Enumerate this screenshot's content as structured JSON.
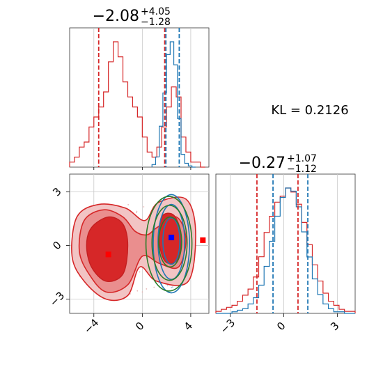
{
  "chart_data": [
    {
      "type": "histogram",
      "panel": "param1-marginal",
      "title": {
        "main": "−2.08",
        "upper": "+4.05",
        "lower": "−1.28"
      },
      "xlim": [
        -6,
        5.5
      ],
      "series": [
        {
          "name": "",
          "color": "#d62728",
          "bins": [
            -6.0,
            -5.6,
            -5.2,
            -4.8,
            -4.4,
            -4.0,
            -3.6,
            -3.2,
            -2.8,
            -2.4,
            -2.0,
            -1.6,
            -1.2,
            -0.8,
            -0.4,
            0.0,
            0.4,
            0.8,
            1.2,
            1.6,
            2.0,
            2.4,
            2.8,
            3.2,
            3.6,
            4.0,
            4.4,
            4.8,
            5.2
          ],
          "counts": [
            1,
            2,
            4,
            5,
            8,
            10,
            12,
            15,
            21,
            25,
            22,
            17,
            14,
            12,
            10,
            6,
            3,
            2,
            4,
            8,
            12,
            16,
            14,
            6,
            3,
            1,
            1,
            0
          ]
        },
        {
          "name": "",
          "color": "#1f77b4",
          "bins": [
            0.8,
            1.1,
            1.4,
            1.7,
            2.0,
            2.3,
            2.6,
            2.9,
            3.2,
            3.5,
            3.8,
            4.1,
            4.4
          ],
          "counts": [
            2,
            8,
            32,
            58,
            88,
            98,
            80,
            38,
            10,
            3,
            1,
            0
          ]
        }
      ],
      "vlines": [
        {
          "x": -3.6,
          "color": "#d62728"
        },
        {
          "x": 1.85,
          "color": "#d62728"
        },
        {
          "x": 1.95,
          "color": "#1f77b4"
        },
        {
          "x": 3.05,
          "color": "#1f77b4"
        }
      ]
    },
    {
      "type": "contour",
      "panel": "joint",
      "xlim": [
        -6,
        5.5
      ],
      "ylim": [
        -3.8,
        4.0
      ],
      "xticks": [
        "−4",
        "0",
        "4"
      ],
      "yticks": [
        "3",
        "0",
        "−3"
      ],
      "markers": [
        {
          "x": -2.8,
          "y": -0.5,
          "color": "#ff0000"
        },
        {
          "x": 2.4,
          "y": 0.45,
          "color": "#0000ff"
        },
        {
          "x": 5.0,
          "y": 0.3,
          "color": "#ff0000"
        }
      ]
    },
    {
      "type": "histogram",
      "panel": "param2-marginal",
      "title": {
        "main": "−0.27",
        "upper": "+1.07",
        "lower": "−1.12"
      },
      "xlim": [
        -3.8,
        4.0
      ],
      "xticks": [
        "−3",
        "0",
        "3"
      ],
      "series": [
        {
          "name": "",
          "color": "#d62728",
          "bins": [
            -3.8,
            -3.5,
            -3.2,
            -2.9,
            -2.6,
            -2.3,
            -2.0,
            -1.7,
            -1.4,
            -1.1,
            -0.8,
            -0.5,
            -0.2,
            0.1,
            0.4,
            0.7,
            1.0,
            1.3,
            1.6,
            1.9,
            2.2,
            2.5,
            2.8,
            3.1,
            3.4,
            3.7,
            4.0
          ],
          "counts": [
            1,
            2,
            3,
            4,
            6,
            9,
            12,
            18,
            28,
            40,
            48,
            55,
            58,
            62,
            60,
            54,
            45,
            34,
            24,
            16,
            10,
            6,
            4,
            2,
            1,
            1
          ]
        },
        {
          "name": "",
          "color": "#1f77b4",
          "bins": [
            -3.8,
            -3.5,
            -3.2,
            -2.9,
            -2.6,
            -2.3,
            -2.0,
            -1.7,
            -1.4,
            -1.1,
            -0.8,
            -0.5,
            -0.2,
            0.1,
            0.4,
            0.7,
            1.0,
            1.3,
            1.6,
            1.9,
            2.2,
            2.5,
            2.8,
            3.1,
            3.4,
            3.7,
            4.0
          ],
          "counts": [
            0,
            0,
            0,
            1,
            2,
            3,
            6,
            10,
            18,
            30,
            46,
            62,
            74,
            80,
            78,
            68,
            52,
            36,
            22,
            12,
            6,
            3,
            1,
            1,
            0,
            0
          ]
        }
      ],
      "vlines": [
        {
          "x": -1.5,
          "color": "#d62728"
        },
        {
          "x": -0.6,
          "color": "#1f77b4"
        },
        {
          "x": 0.8,
          "color": "#d62728"
        },
        {
          "x": 1.35,
          "color": "#1f77b4"
        }
      ]
    }
  ],
  "annotation": {
    "kl": "KL = 0.2126"
  }
}
